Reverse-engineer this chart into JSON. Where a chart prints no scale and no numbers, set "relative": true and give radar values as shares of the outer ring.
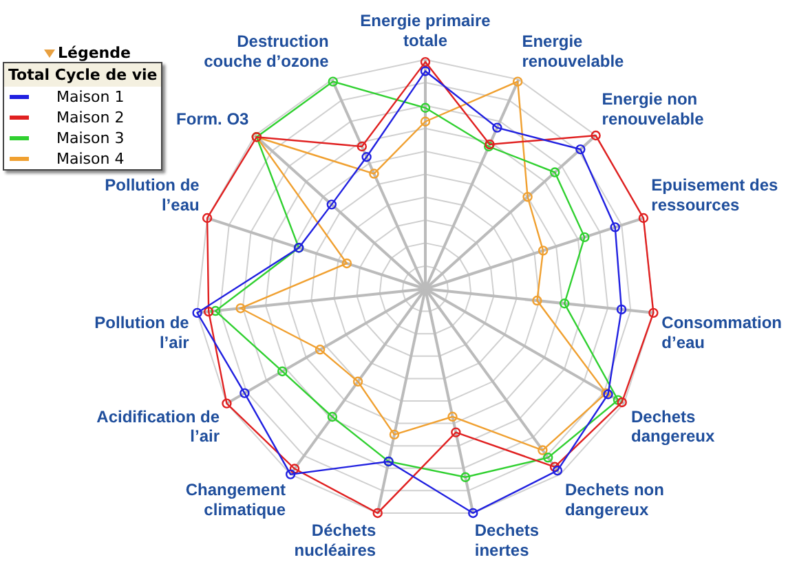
{
  "chart_data": {
    "type": "radar",
    "relative": true,
    "grid": true,
    "legend": "top left",
    "marker": "circle",
    "legend_title": "Total Cycle de vie",
    "annotations": [
      "Légende"
    ],
    "categories": [
      "Energie primaire totale",
      "Energie renouvelable",
      "Energie non renouvelable",
      "Epuisement des ressources",
      "Consommation d’eau",
      "Dechets dangereux",
      "Dechets non dangereux",
      "Dechets inertes",
      "Déchets nucléaires",
      "Changement climatique",
      "Acidification de l’air",
      "Pollution de l’air",
      "Pollution de l’eau",
      "Form. O3",
      "Destruction couche d’ozone"
    ],
    "series": [
      {
        "name": "Maison 1",
        "color": "#2020e0",
        "values": [
          0.95,
          0.77,
          0.91,
          0.87,
          0.86,
          0.92,
          0.98,
          1.0,
          0.77,
          1.0,
          0.91,
          1.0,
          0.58,
          0.55,
          0.63
        ]
      },
      {
        "name": "Maison 2",
        "color": "#e02020",
        "values": [
          0.99,
          0.69,
          1.0,
          1.0,
          1.0,
          0.99,
          0.96,
          0.64,
          1.0,
          0.97,
          1.0,
          0.95,
          1.0,
          0.99,
          0.68
        ]
      },
      {
        "name": "Maison 3",
        "color": "#30d030",
        "values": [
          0.79,
          0.68,
          0.76,
          0.73,
          0.61,
          0.97,
          0.91,
          0.84,
          0.77,
          0.69,
          0.72,
          0.92,
          0.58,
          0.99,
          0.99
        ]
      },
      {
        "name": "Maison 4",
        "color": "#f0a030",
        "values": [
          0.73,
          0.99,
          0.6,
          0.54,
          0.49,
          0.91,
          0.87,
          0.57,
          0.65,
          0.5,
          0.53,
          0.81,
          0.36,
          0.99,
          0.55
        ]
      }
    ]
  }
}
